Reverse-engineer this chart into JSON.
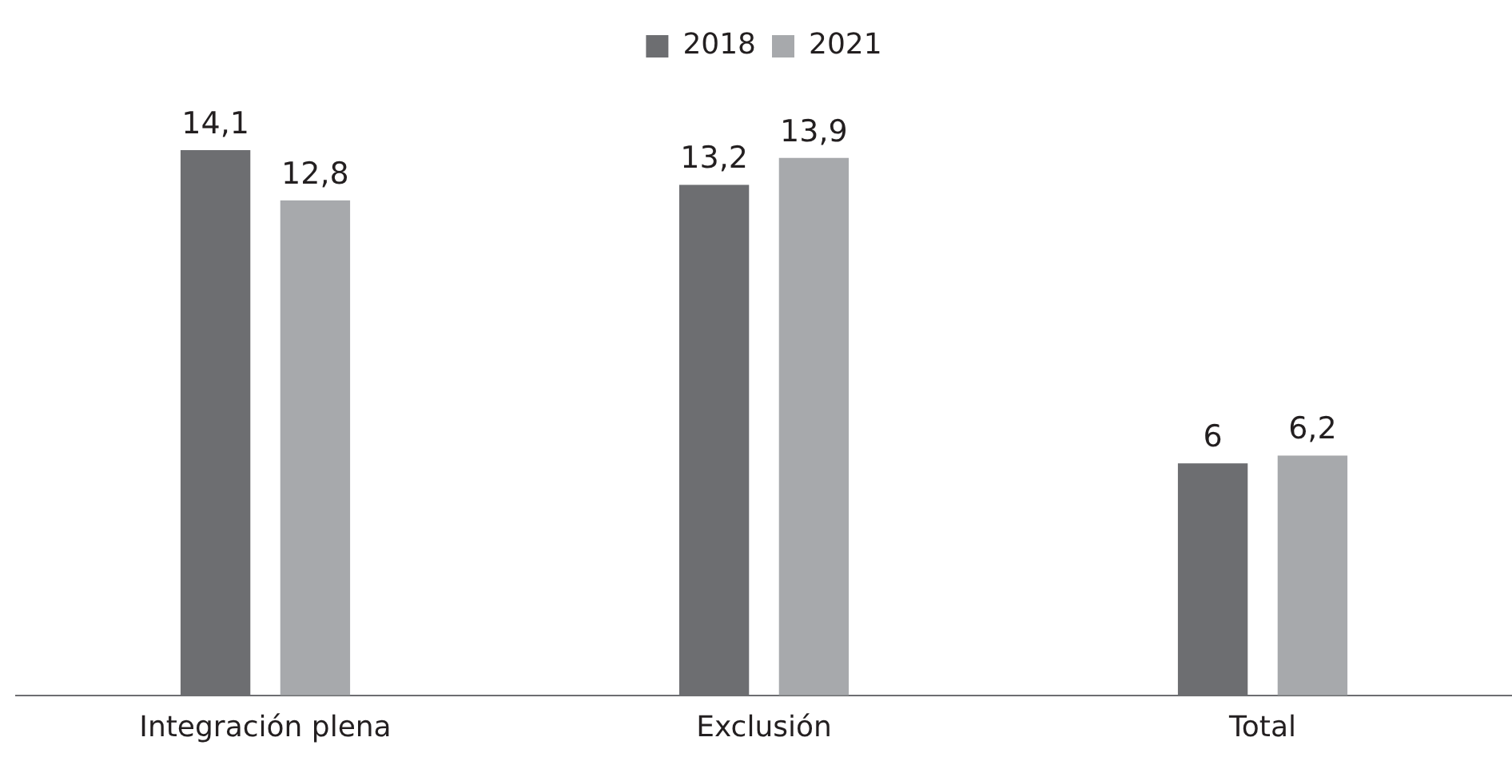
{
  "chart_data": {
    "type": "bar",
    "categories": [
      "Integración plena",
      "Exclusión",
      "Total"
    ],
    "series": [
      {
        "name": "2018",
        "color": "#6d6e71",
        "values": [
          14.1,
          13.2,
          6
        ],
        "value_labels": [
          "14,1",
          "13,2",
          "6"
        ]
      },
      {
        "name": "2021",
        "color": "#a7a9ac",
        "values": [
          12.8,
          13.9,
          6.2
        ],
        "value_labels": [
          "12,8",
          "13,9",
          "6,2"
        ]
      }
    ],
    "legend": "top",
    "grid": false
  }
}
